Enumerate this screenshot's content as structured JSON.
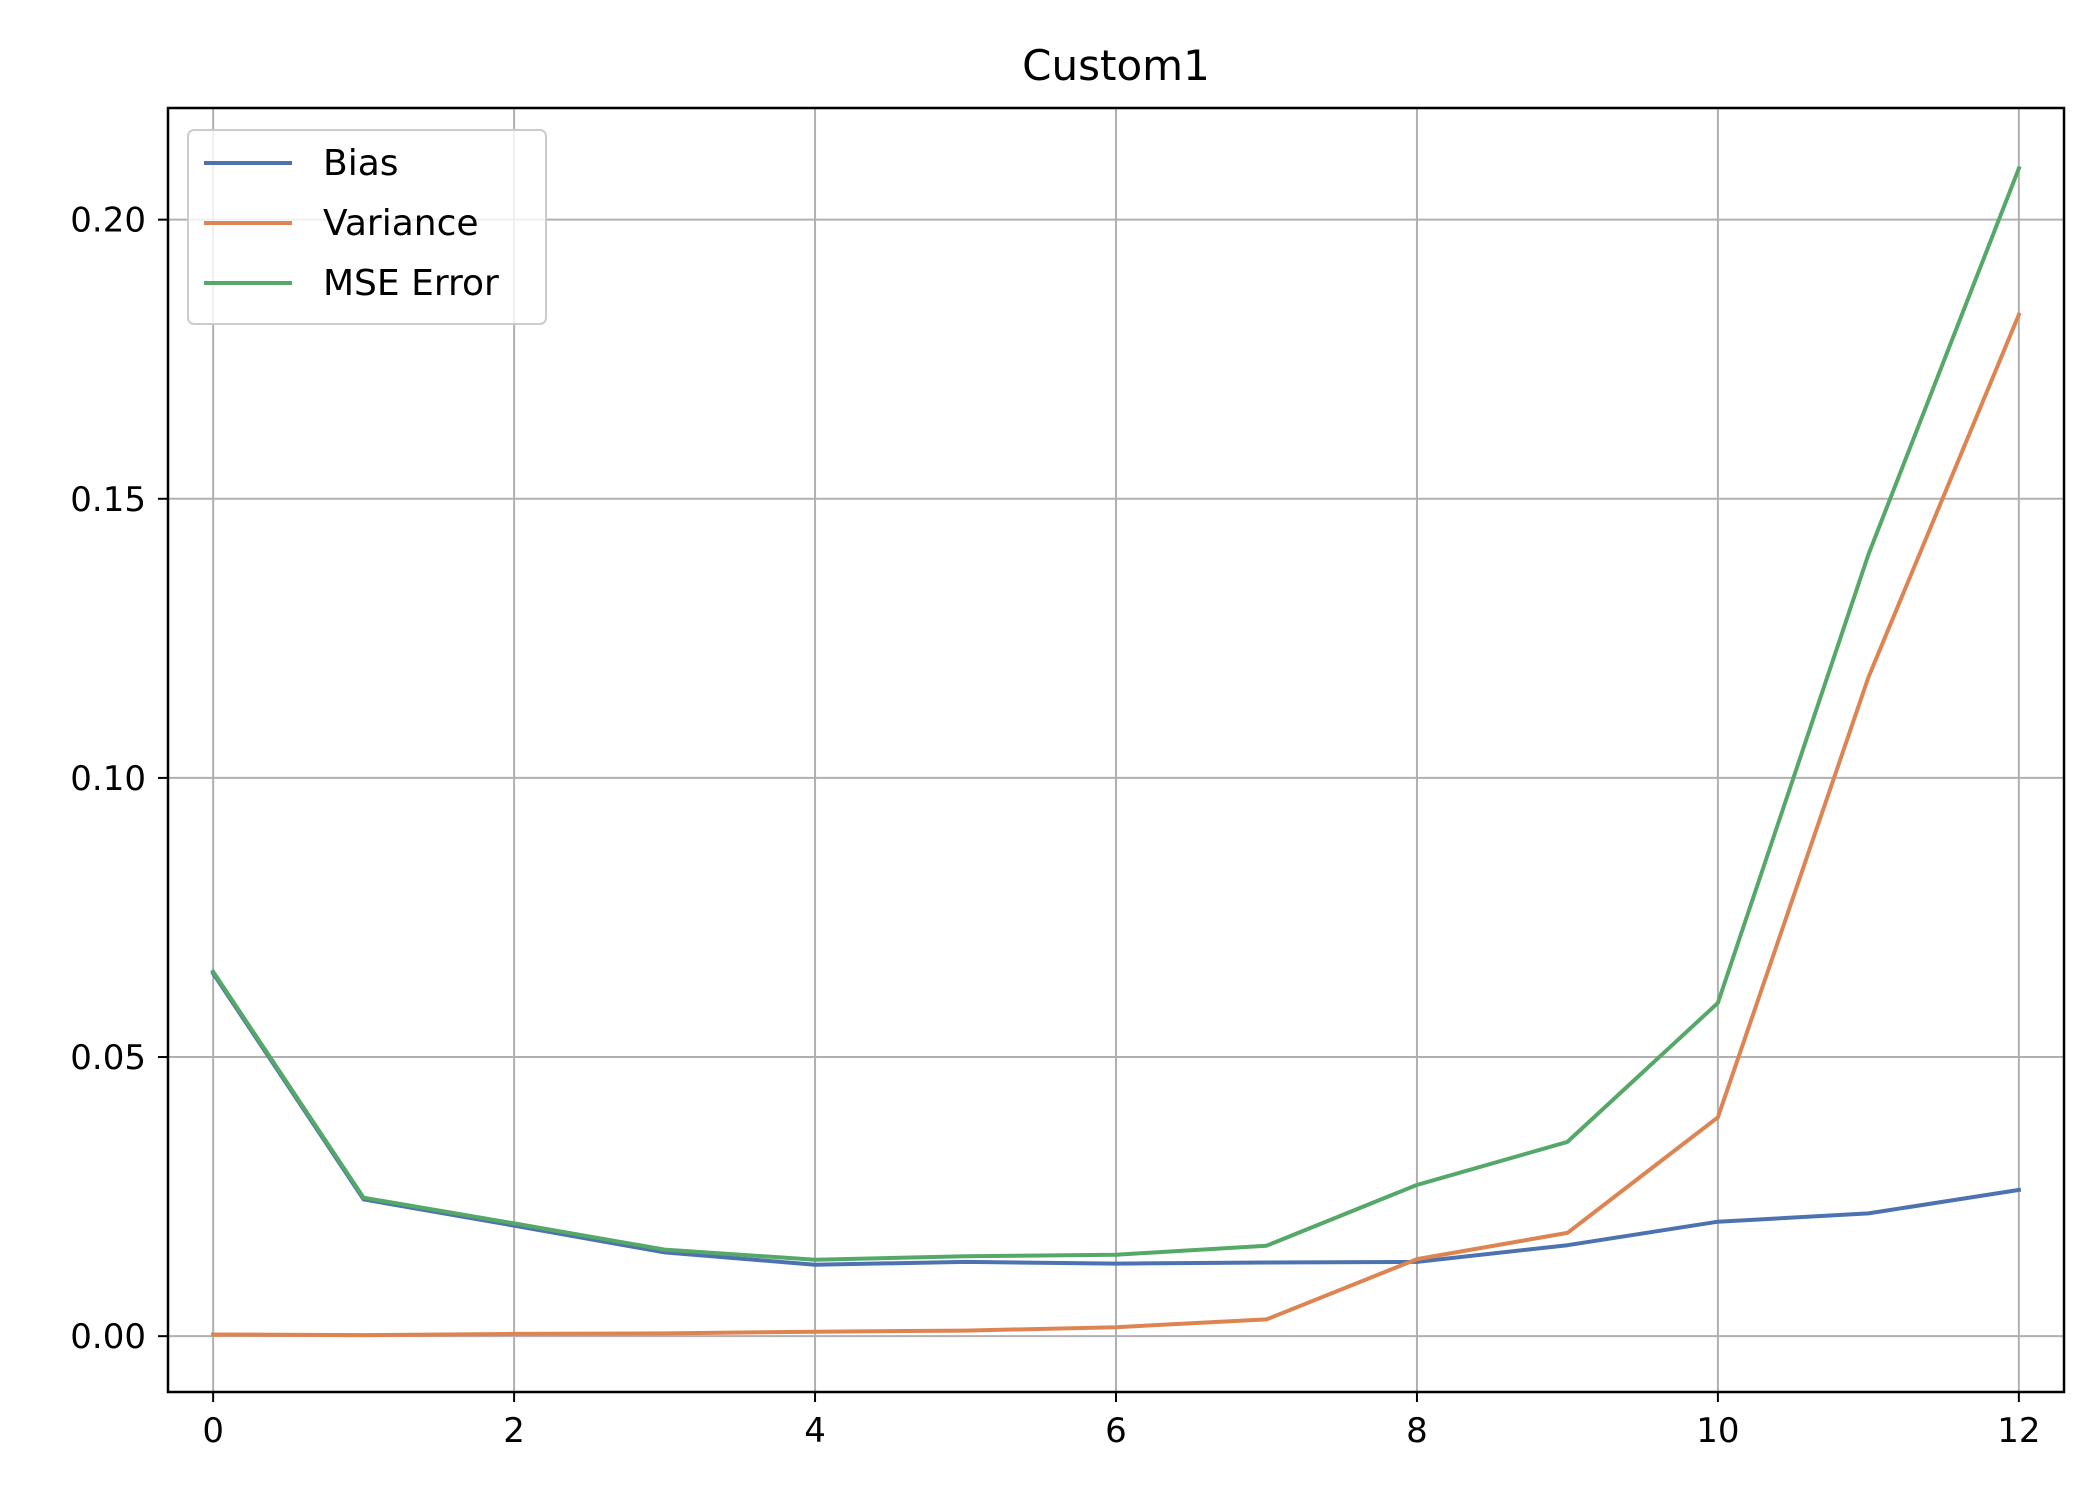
{
  "chart_data": {
    "type": "line",
    "title": "Custom1",
    "xlabel": "",
    "ylabel": "",
    "x": [
      0,
      1,
      2,
      3,
      4,
      5,
      6,
      7,
      8,
      9,
      10,
      11,
      12
    ],
    "xlim": [
      -0.3,
      12.3
    ],
    "ylim": [
      -0.01,
      0.22
    ],
    "x_ticks": [
      0,
      2,
      4,
      6,
      8,
      10,
      12
    ],
    "x_tick_labels": [
      "0",
      "2",
      "4",
      "6",
      "8",
      "10",
      "12"
    ],
    "y_ticks": [
      0.0,
      0.05,
      0.1,
      0.15,
      0.2
    ],
    "y_tick_labels": [
      "0.00",
      "0.05",
      "0.10",
      "0.15",
      "0.20"
    ],
    "grid": true,
    "legend_position": "top-left",
    "series": [
      {
        "name": "Bias",
        "color": "#4c72b0",
        "values": [
          0.065,
          0.0245,
          0.0198,
          0.015,
          0.0128,
          0.0133,
          0.013,
          0.0132,
          0.0133,
          0.0163,
          0.0205,
          0.022,
          0.0262
        ]
      },
      {
        "name": "Variance",
        "color": "#dd8452",
        "values": [
          0.0003,
          0.0002,
          0.0004,
          0.0005,
          0.0008,
          0.001,
          0.0016,
          0.003,
          0.0138,
          0.0185,
          0.0392,
          0.118,
          0.183
        ]
      },
      {
        "name": "MSE Error",
        "color": "#55a868",
        "values": [
          0.0653,
          0.0248,
          0.0202,
          0.0155,
          0.0137,
          0.0143,
          0.0146,
          0.0162,
          0.0271,
          0.0348,
          0.0597,
          0.14,
          0.2092
        ]
      }
    ]
  },
  "colors": {
    "grid": "#b0b0b0",
    "axes": "#000000",
    "background": "#ffffff",
    "legend_border": "#cccccc"
  }
}
